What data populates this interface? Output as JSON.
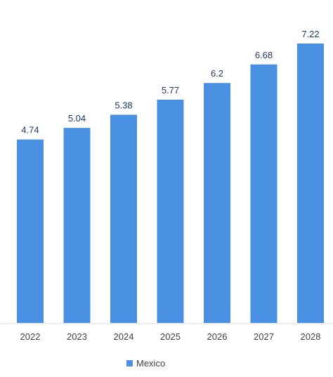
{
  "chart_data": {
    "type": "bar",
    "categories": [
      "2022",
      "2023",
      "2024",
      "2025",
      "2026",
      "2027",
      "2028"
    ],
    "series": [
      {
        "name": "Mexico",
        "values": [
          4.74,
          5.04,
          5.38,
          5.77,
          6.2,
          6.68,
          7.22
        ],
        "color": "#4a90e2"
      }
    ],
    "data_labels": [
      "4.74",
      "5.04",
      "5.38",
      "5.77",
      "6.2",
      "6.68",
      "7.22"
    ],
    "ylim": [
      0,
      7.22
    ],
    "grid": false,
    "legend_position": "bottom"
  },
  "legend": {
    "label": "Mexico",
    "color": "#4a90e2"
  }
}
